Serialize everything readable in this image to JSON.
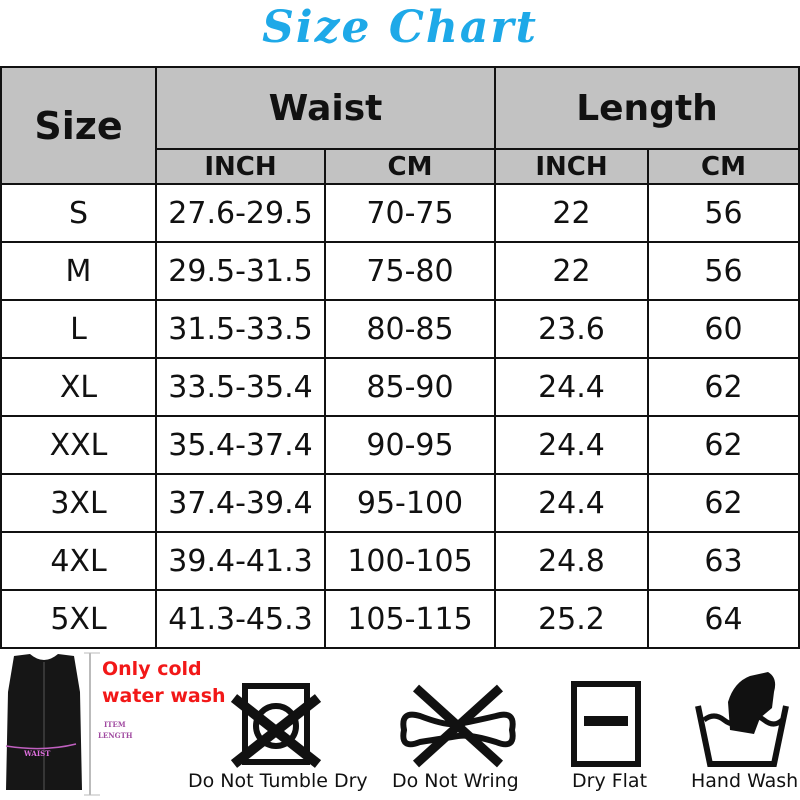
{
  "title": "Size Chart",
  "table": {
    "headers": {
      "size": "Size",
      "waist": "Waist",
      "length": "Length",
      "waist_inch": "INCH",
      "waist_cm": "CM",
      "length_inch": "INCH",
      "length_cm": "CM"
    },
    "rows": [
      [
        "S",
        "27.6-29.5",
        "70-75",
        "22",
        "56"
      ],
      [
        "M",
        "29.5-31.5",
        "75-80",
        "22",
        "56"
      ],
      [
        "L",
        "31.5-33.5",
        "80-85",
        "23.6",
        "60"
      ],
      [
        "XL",
        "33.5-35.4",
        "85-90",
        "24.4",
        "62"
      ],
      [
        "XXL",
        "35.4-37.4",
        "90-95",
        "24.4",
        "62"
      ],
      [
        "3XL",
        "37.4-39.4",
        "95-100",
        "24.4",
        "62"
      ],
      [
        "4XL",
        "39.4-41.3",
        "100-105",
        "24.8",
        "63"
      ],
      [
        "5XL",
        "41.3-45.3",
        "105-115",
        "25.2",
        "64"
      ]
    ]
  },
  "vest": {
    "item_length": "ITEM",
    "item_length2": "LENGTH",
    "waist": "WAIST"
  },
  "note": {
    "line1": "Only cold",
    "line2": "water wash"
  },
  "care": [
    "Do Not Tumble Dry",
    "Do Not Wring",
    "Dry Flat",
    "Hand Wash"
  ]
}
